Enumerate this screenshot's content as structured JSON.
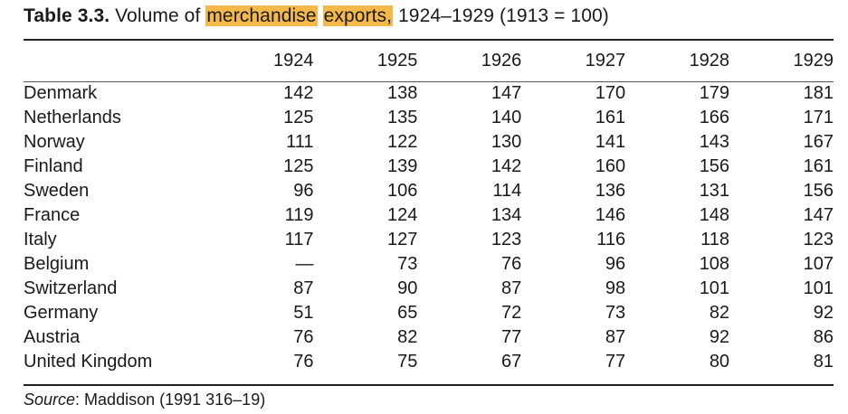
{
  "caption": {
    "label": "Table 3.3.",
    "text_before": " Volume of ",
    "highlight_1": "merchandise",
    "space": " ",
    "highlight_2": "exports,",
    "text_after": " 1924–1929 (1913 = 100)",
    "highlight_color": "#f5b94a"
  },
  "table": {
    "country_header": "",
    "years": [
      "1924",
      "1925",
      "1926",
      "1927",
      "1928",
      "1929"
    ],
    "rows": [
      {
        "country": "Denmark",
        "values": [
          "142",
          "138",
          "147",
          "170",
          "179",
          "181"
        ]
      },
      {
        "country": "Netherlands",
        "values": [
          "125",
          "135",
          "140",
          "161",
          "166",
          "171"
        ]
      },
      {
        "country": "Norway",
        "values": [
          "111",
          "122",
          "130",
          "141",
          "143",
          "167"
        ]
      },
      {
        "country": "Finland",
        "values": [
          "125",
          "139",
          "142",
          "160",
          "156",
          "161"
        ]
      },
      {
        "country": "Sweden",
        "values": [
          "96",
          "106",
          "114",
          "136",
          "131",
          "156"
        ]
      },
      {
        "country": "France",
        "values": [
          "119",
          "124",
          "134",
          "146",
          "148",
          "147"
        ]
      },
      {
        "country": "Italy",
        "values": [
          "117",
          "127",
          "123",
          "116",
          "118",
          "123"
        ]
      },
      {
        "country": "Belgium",
        "values": [
          "—",
          "73",
          "76",
          "96",
          "108",
          "107"
        ]
      },
      {
        "country": "Switzerland",
        "values": [
          "87",
          "90",
          "87",
          "98",
          "101",
          "101"
        ]
      },
      {
        "country": "Germany",
        "values": [
          "51",
          "65",
          "72",
          "73",
          "82",
          "92"
        ]
      },
      {
        "country": "Austria",
        "values": [
          "76",
          "82",
          "77",
          "87",
          "92",
          "86"
        ]
      },
      {
        "country": "United Kingdom",
        "values": [
          "76",
          "75",
          "67",
          "77",
          "80",
          "81"
        ]
      }
    ]
  },
  "source": {
    "label": "Source",
    "text": ": Maddison (1991  316–19)"
  }
}
